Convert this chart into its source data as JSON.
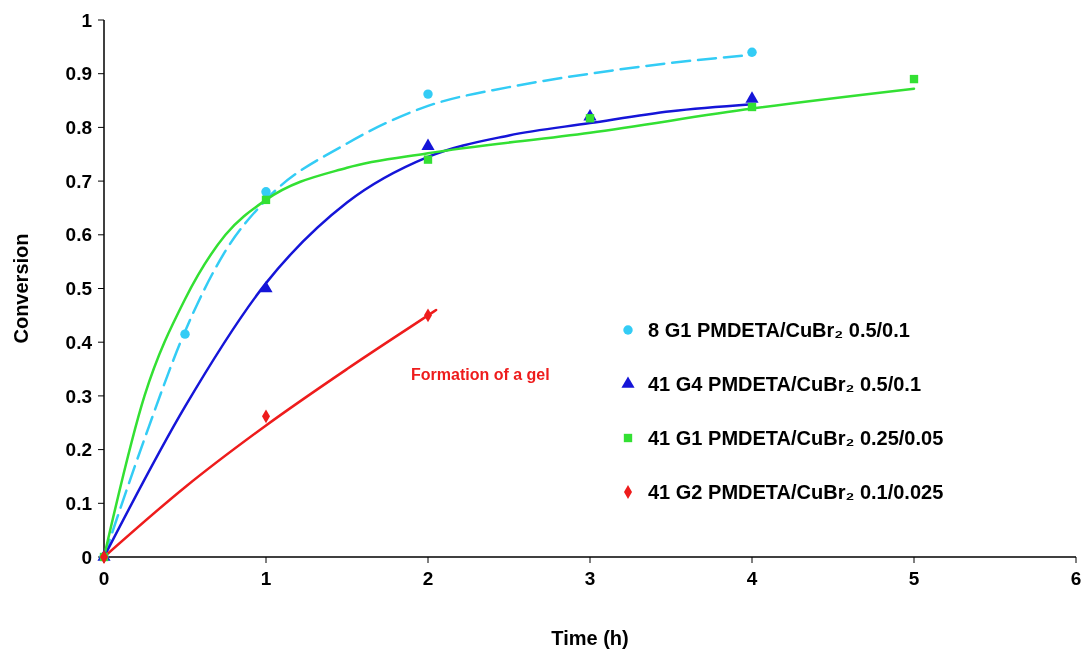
{
  "chart_data": {
    "type": "scatter",
    "xlabel": "Time (h)",
    "ylabel": "Conversion",
    "xlim": [
      0,
      6
    ],
    "ylim": [
      0,
      1
    ],
    "xticks": [
      0,
      1,
      2,
      3,
      4,
      5,
      6
    ],
    "yticks": [
      0,
      0.1,
      0.2,
      0.3,
      0.4,
      0.5,
      0.6,
      0.7,
      0.8,
      0.9,
      1
    ],
    "grid": false,
    "legend": "right",
    "series": [
      {
        "type": "line",
        "color": "#33ccf5",
        "line_style": "dashed",
        "marker": "none",
        "x": [
          0,
          0.25,
          0.5,
          0.75,
          1,
          1.5,
          2,
          2.5,
          3,
          3.5,
          4
        ],
        "values": [
          0,
          0.22,
          0.42,
          0.57,
          0.665,
          0.77,
          0.84,
          0.875,
          0.9,
          0.92,
          0.935
        ]
      },
      {
        "type": "line",
        "color": "#1515d8",
        "line_style": "solid",
        "marker": "none",
        "x": [
          0,
          0.5,
          1,
          1.5,
          2,
          2.5,
          3,
          3.5,
          4
        ],
        "values": [
          0,
          0.28,
          0.51,
          0.66,
          0.745,
          0.785,
          0.808,
          0.83,
          0.843
        ]
      },
      {
        "type": "line",
        "color": "#33e033",
        "line_style": "solid",
        "marker": "none",
        "x": [
          0,
          0.25,
          0.5,
          0.75,
          1,
          1.5,
          2,
          3,
          4,
          5
        ],
        "values": [
          0,
          0.3,
          0.48,
          0.6,
          0.665,
          0.725,
          0.752,
          0.79,
          0.835,
          0.872
        ]
      },
      {
        "type": "line",
        "color": "#ee1c1c",
        "line_style": "solid",
        "marker": "none",
        "x": [
          0,
          0.5,
          1,
          1.5,
          2,
          2.05
        ],
        "values": [
          0,
          0.13,
          0.245,
          0.35,
          0.45,
          0.46
        ]
      },
      {
        "name": "8 G1 PMDETA/CuBr₂ 0.5/0.1",
        "color": "#33ccf5",
        "marker": "circle",
        "x": [
          0,
          0.5,
          1,
          2,
          4
        ],
        "values": [
          0,
          0.415,
          0.68,
          0.862,
          0.94
        ]
      },
      {
        "name": "41 G4 PMDETA/CuBr₂ 0.5/0.1",
        "color": "#1515d8",
        "marker": "triangle",
        "x": [
          0,
          1,
          2,
          3,
          4
        ],
        "values": [
          0,
          0.5,
          0.765,
          0.82,
          0.853
        ]
      },
      {
        "name": "41 G1 PMDETA/CuBr₂ 0.25/0.05",
        "color": "#33e033",
        "marker": "square",
        "x": [
          0,
          1,
          2,
          3,
          4,
          5
        ],
        "values": [
          0,
          0.665,
          0.74,
          0.817,
          0.838,
          0.89
        ]
      },
      {
        "name": "41 G2 PMDETA/CuBr₂ 0.1/0.025",
        "color": "#ee1c1c",
        "marker": "diamond",
        "x": [
          0,
          1,
          2
        ],
        "values": [
          0,
          0.262,
          0.45
        ]
      }
    ],
    "annotations": [
      "Formation of a gel"
    ]
  }
}
